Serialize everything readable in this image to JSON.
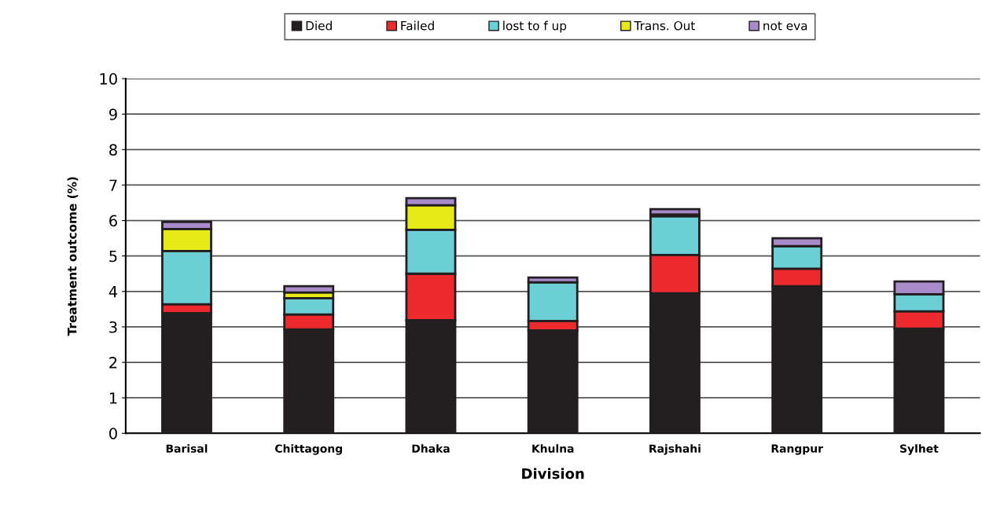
{
  "chart_data": {
    "type": "bar",
    "stacked": true,
    "xlabel": "Division",
    "ylabel": "Treatment outcome (%)",
    "categories": [
      "Barisal",
      "Chittagong",
      "Dhaka",
      "Khulna",
      "Rajshahi",
      "Rangpur",
      "Sylhet"
    ],
    "series": [
      {
        "name": "Died",
        "color": "#231f20",
        "values": [
          3.39,
          2.93,
          3.19,
          2.9,
          3.95,
          4.15,
          2.95
        ]
      },
      {
        "name": "Failed",
        "color": "#ed2a2e",
        "values": [
          0.25,
          0.42,
          1.31,
          0.27,
          1.08,
          0.49,
          0.49
        ]
      },
      {
        "name": "lost to f up",
        "color": "#6dcfd6",
        "values": [
          1.5,
          0.46,
          1.24,
          1.09,
          1.09,
          0.64,
          0.48
        ]
      },
      {
        "name": "Trans. Out",
        "color": "#e6ea16",
        "values": [
          0.62,
          0.16,
          0.69,
          null,
          0.05,
          null,
          null
        ]
      },
      {
        "name": "not eva",
        "color": "#a98bcb",
        "values": [
          0.2,
          0.18,
          0.2,
          0.13,
          0.15,
          0.22,
          0.36
        ]
      }
    ],
    "ylim": [
      0,
      10
    ],
    "yticks": [
      0,
      1,
      2,
      3,
      4,
      5,
      6,
      7,
      8,
      9,
      10
    ],
    "grid": "y",
    "legend": "top"
  }
}
